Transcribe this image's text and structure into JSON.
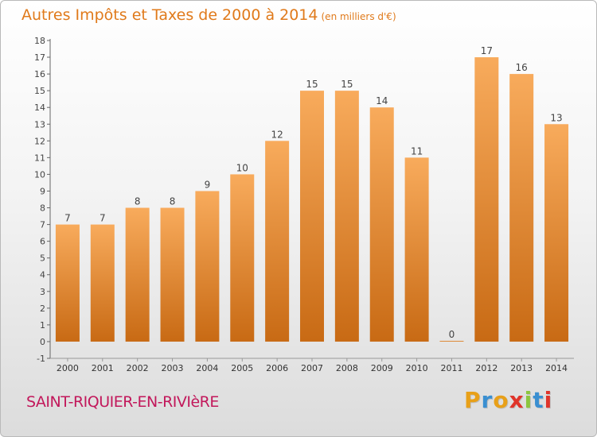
{
  "title": "Autres Impôts et Taxes de 2000 à 2014",
  "unit": "(en milliers d'€)",
  "commune": "SAINT-RIQUIER-EN-RIVIèRE",
  "logo": {
    "text": "Proxiti",
    "colors": [
      "#e8a019",
      "#3a8fd1",
      "#e8a019",
      "#e0342a",
      "#8cc63f",
      "#3a8fd1",
      "#e0342a"
    ]
  },
  "colors": {
    "bar_light": "#f8ab5c",
    "bar_dark": "#c86a14",
    "title": "#e07a1b",
    "commune": "#c2185b"
  },
  "chart_data": {
    "type": "bar",
    "categories": [
      "2000",
      "2001",
      "2002",
      "2003",
      "2004",
      "2005",
      "2006",
      "2007",
      "2008",
      "2009",
      "2010",
      "2011",
      "2012",
      "2013",
      "2014"
    ],
    "values": [
      7,
      7,
      8,
      8,
      9,
      10,
      12,
      15,
      15,
      14,
      11,
      0,
      17,
      16,
      13
    ],
    "ylim": [
      -1,
      18
    ],
    "yticks": [
      "-1",
      "0",
      "1",
      "2",
      "3",
      "4",
      "5",
      "6",
      "7",
      "8",
      "9",
      "10",
      "11",
      "12",
      "13",
      "14",
      "15",
      "16",
      "17",
      "18"
    ],
    "grid": false
  }
}
